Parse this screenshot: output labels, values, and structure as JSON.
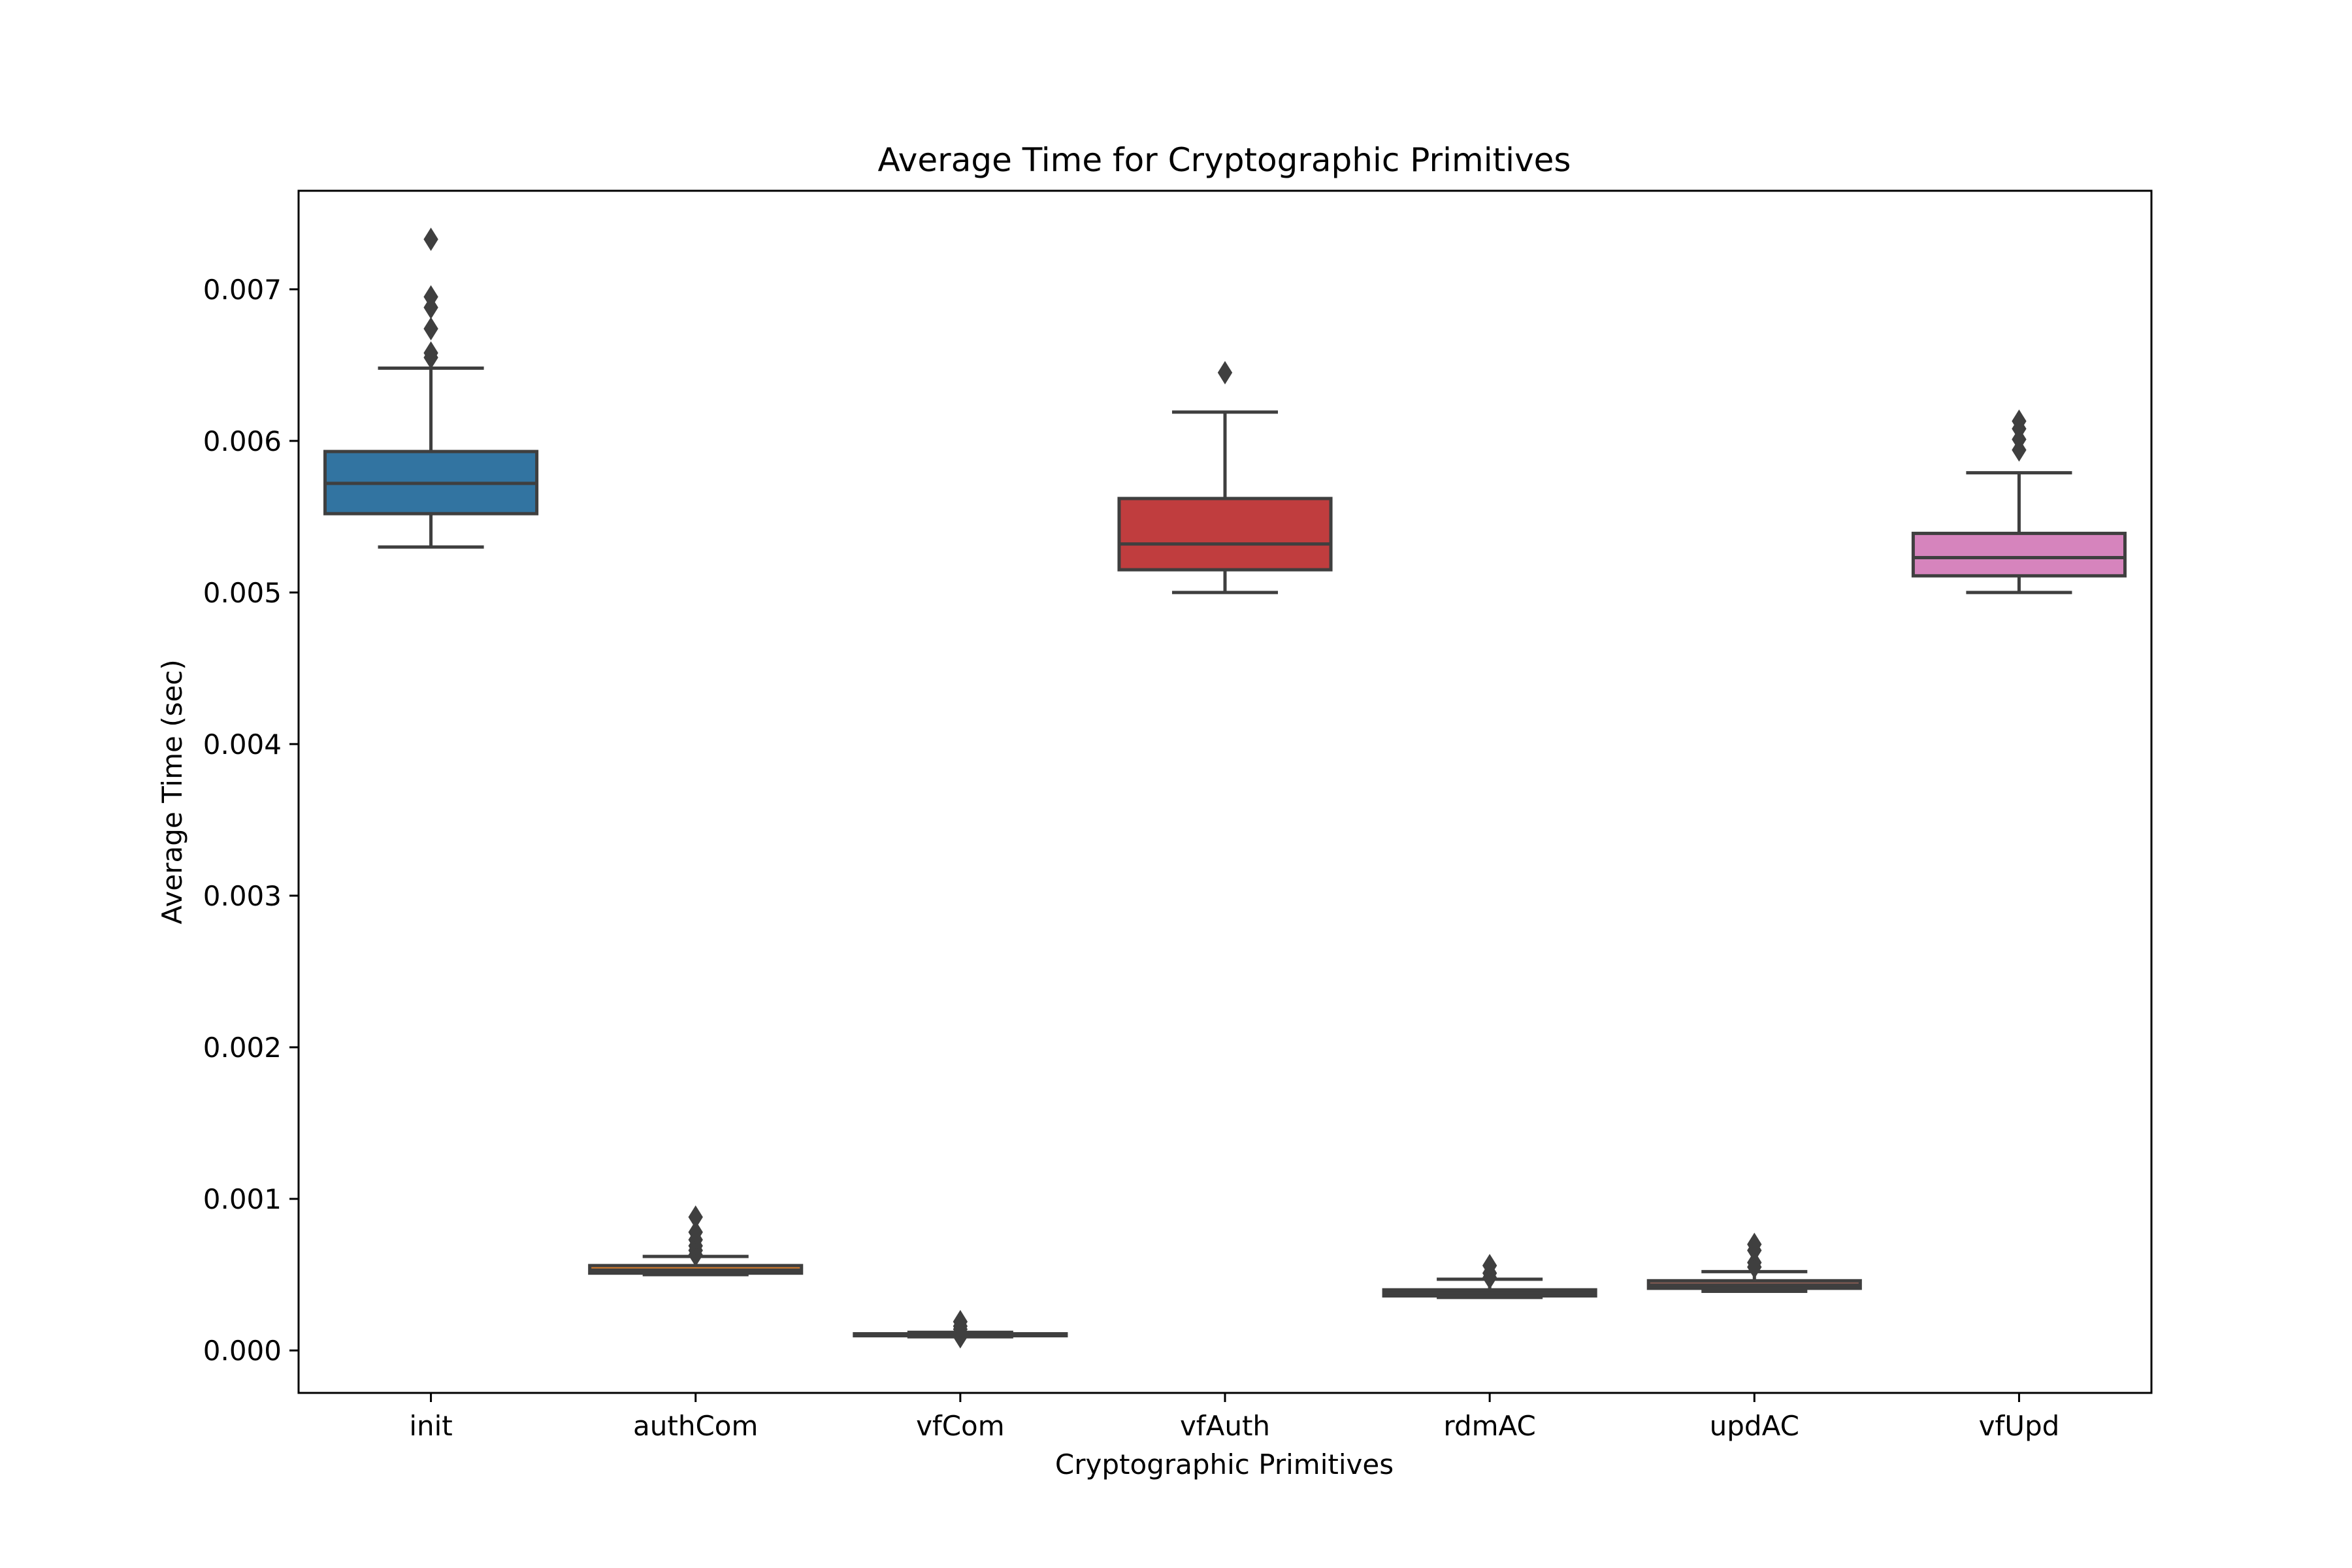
{
  "chart_data": {
    "type": "box",
    "title": "Average Time for Cryptographic Primitives",
    "xlabel": "Cryptographic Primitives",
    "ylabel": "Average Time (sec)",
    "ylim": [
      -0.00028,
      0.00765
    ],
    "yticks": [
      0.0,
      0.001,
      0.002,
      0.003,
      0.004,
      0.005,
      0.006,
      0.007
    ],
    "ytick_labels": [
      "0.000",
      "0.001",
      "0.002",
      "0.003",
      "0.004",
      "0.005",
      "0.006",
      "0.007"
    ],
    "grid": false,
    "legend": false,
    "categories": [
      "init",
      "authCom",
      "vfCom",
      "vfAuth",
      "rdmAC",
      "updAC",
      "vfUpd"
    ],
    "boxes": [
      {
        "category": "init",
        "color": "#3274a1",
        "whisker_low": 0.0053,
        "q1": 0.00552,
        "median": 0.00572,
        "q3": 0.00593,
        "whisker_high": 0.00648,
        "outliers": [
          0.00655,
          0.00658,
          0.00674,
          0.00688,
          0.00695,
          0.00733
        ]
      },
      {
        "category": "authCom",
        "color": "#e1812c",
        "whisker_low": 0.0005,
        "q1": 0.00051,
        "median": 0.00053,
        "q3": 0.00056,
        "whisker_high": 0.00062,
        "outliers": [
          0.00063,
          0.00066,
          0.00069,
          0.00073,
          0.00078,
          0.00088
        ]
      },
      {
        "category": "vfCom",
        "color": "#3a923a",
        "whisker_low": 9e-05,
        "q1": 0.0001,
        "median": 0.00011,
        "q3": 0.00011,
        "whisker_high": 0.00012,
        "outliers": [
          9e-05,
          0.00014,
          0.00016,
          0.00019
        ]
      },
      {
        "category": "vfAuth",
        "color": "#c03d3e",
        "whisker_low": 0.005,
        "q1": 0.00515,
        "median": 0.00532,
        "q3": 0.00562,
        "whisker_high": 0.00619,
        "outliers": [
          0.00645
        ]
      },
      {
        "category": "rdmAC",
        "color": "#9372b2",
        "whisker_low": 0.00035,
        "q1": 0.00036,
        "median": 0.00038,
        "q3": 0.0004,
        "whisker_high": 0.00047,
        "outliers": [
          0.00048,
          0.00051,
          0.00056
        ]
      },
      {
        "category": "updAC",
        "color": "#845b53",
        "whisker_low": 0.00039,
        "q1": 0.00041,
        "median": 0.00043,
        "q3": 0.00046,
        "whisker_high": 0.00052,
        "outliers": [
          0.00055,
          0.00058,
          0.00066,
          0.0007
        ]
      },
      {
        "category": "vfUpd",
        "color": "#d684bd",
        "whisker_low": 0.005,
        "q1": 0.00511,
        "median": 0.00523,
        "q3": 0.00539,
        "whisker_high": 0.00579,
        "outliers": [
          0.00594,
          0.00601,
          0.00608,
          0.00613
        ]
      }
    ]
  }
}
